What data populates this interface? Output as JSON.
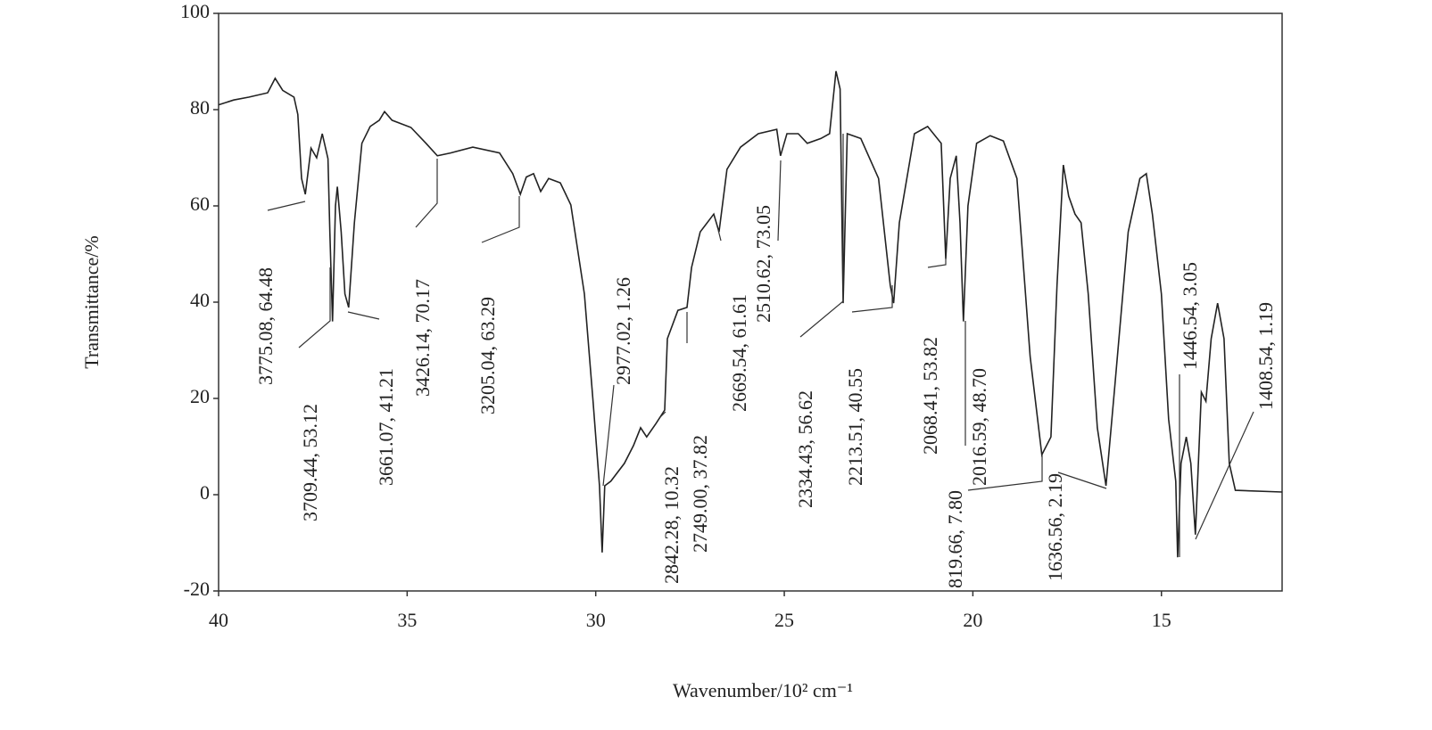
{
  "chart_data": {
    "type": "line",
    "xlabel": "Wavenumber/10² cm⁻¹",
    "ylabel": "Transmittance/%",
    "x": [
      40,
      39.6,
      39.2,
      38.7,
      38.5,
      38.3,
      38.0,
      37.9,
      37.8,
      37.7,
      37.55,
      37.4,
      37.25,
      37.1,
      37.05,
      36.98,
      36.9,
      36.85,
      36.75,
      36.65,
      36.55,
      36.4,
      36.2,
      35.98,
      35.74,
      35.6,
      35.4,
      34.9,
      34.5,
      34.2,
      33.85,
      33.26,
      32.55,
      32.2,
      32.0,
      31.84,
      31.65,
      31.46,
      31.25,
      30.94,
      30.66,
      30.3,
      30.07,
      29.9,
      29.83,
      29.76,
      29.6,
      29.24,
      29.0,
      28.81,
      28.65,
      28.4,
      28.17,
      28.1,
      27.82,
      27.58,
      27.46,
      27.23,
      26.87,
      26.73,
      26.52,
      26.16,
      25.69,
      25.2,
      25.1,
      24.93,
      24.63,
      24.39,
      24.03,
      23.8,
      23.63,
      23.52,
      23.44,
      23.33,
      22.97,
      22.5,
      22.19,
      22.1,
      21.95,
      21.55,
      21.2,
      20.84,
      20.72,
      20.6,
      20.44,
      20.34,
      20.25,
      20.13,
      19.9,
      19.54,
      19.19,
      18.83,
      18.48,
      18.17,
      17.93,
      17.77,
      17.6,
      17.46,
      17.29,
      17.13,
      16.94,
      16.7,
      16.47,
      16.23,
      15.88,
      15.57,
      15.4,
      15.24,
      15.0,
      14.81,
      14.62,
      14.57,
      14.48,
      14.34,
      14.22,
      14.1,
      13.94,
      13.82,
      13.68,
      13.51,
      13.34,
      13.2,
      13.04,
      11.8
    ],
    "series": [
      {
        "color": "#222222",
        "values": [
          81,
          82,
          82.6,
          83.5,
          86.5,
          84,
          82.6,
          79,
          65.7,
          62.4,
          72,
          70,
          75,
          69.8,
          54.6,
          36,
          60,
          64,
          54.6,
          41.7,
          38.9,
          56.5,
          73,
          76.5,
          77.8,
          79.6,
          77.8,
          76.3,
          73,
          70.4,
          71,
          72.2,
          71,
          66.7,
          62.4,
          66,
          66.7,
          63,
          65.7,
          64.8,
          60.2,
          41.7,
          19.4,
          1.85,
          -12,
          1.85,
          2.8,
          6.5,
          10.2,
          13.9,
          12,
          14.8,
          17.6,
          32.4,
          38.3,
          38.9,
          47.2,
          54.6,
          58.3,
          54.6,
          67.6,
          72.2,
          75,
          75.9,
          70.4,
          75,
          75,
          73,
          74,
          75,
          88,
          84.3,
          39.8,
          75,
          74,
          65.7,
          43.5,
          39.8,
          56.5,
          75,
          76.5,
          73,
          49,
          65.7,
          70.4,
          56.5,
          36,
          60,
          73,
          74.6,
          73.5,
          65.7,
          28.7,
          8.3,
          12,
          43.5,
          68.5,
          62,
          58.3,
          56.5,
          41.7,
          13.9,
          1.85,
          23,
          54.6,
          65.7,
          66.7,
          58.3,
          41.7,
          15.7,
          2.8,
          -13,
          6.5,
          12,
          6.5,
          -8.3,
          21.3,
          19.4,
          32.4,
          39.8,
          32.4,
          6.5,
          0.9,
          0.55
        ]
      }
    ],
    "annotations": [
      "3775.08, 64.48",
      "3709.44, 53.12",
      "3661.07, 41.21",
      "3426.14, 70.17",
      "3205.04, 63.29",
      "2977.02, 1.26",
      "2842.28, 10.32",
      "2749.00, 37.82",
      "2669.54, 61.61",
      "2510.62, 73.05",
      "2334.43, 56.62",
      "2213.51, 40.55",
      "2068.41, 53.82",
      "819.66, 7.80",
      "2016.59, 48.70",
      "1636.56, 2.19",
      "1446.54, 3.05",
      "1408.54, 1.19"
    ],
    "xlim": [
      40,
      11.8
    ],
    "ylim": [
      -20,
      100
    ],
    "xticks": [
      40,
      35,
      30,
      25,
      20,
      15
    ],
    "yticks": [
      -20,
      0,
      20,
      40,
      60,
      80,
      100
    ]
  }
}
